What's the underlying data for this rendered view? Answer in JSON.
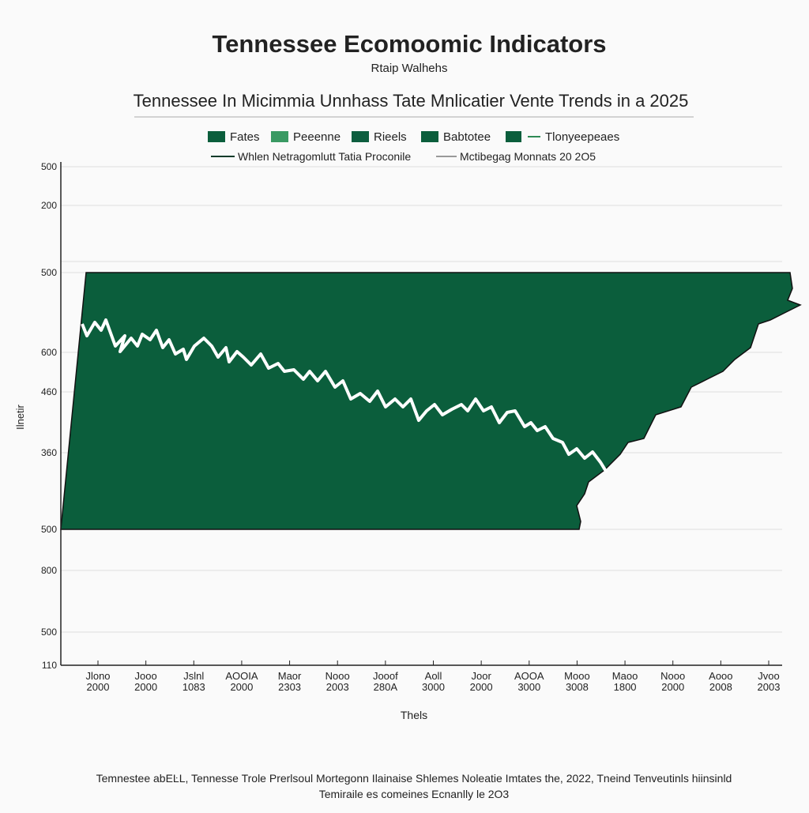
{
  "header": {
    "title": "Tennessee Ecomoomic Indicators",
    "subtitle": "Rtaip Walhehs",
    "heading": "Tennessee In Micimmia Unnhass Tate  Mnlicatier Vente Trends in a 2025"
  },
  "legend": {
    "row1": [
      "Fates",
      "Peeenne",
      "Rieels",
      "Babtotee",
      "Tlonyeepeaes"
    ],
    "row2": [
      "Whlen Netragomlutt Tatia Proconile",
      "Mctibegag Monnats 20 2O5"
    ]
  },
  "axes": {
    "y_title": "Ilnetir",
    "x_title": "Thels",
    "y_labels": [
      "500",
      "200",
      "500",
      "600",
      "460",
      "360",
      "500",
      "800",
      "500",
      "110"
    ],
    "x_labels": [
      [
        "Jlono",
        "2000"
      ],
      [
        "Jooo",
        "2000"
      ],
      [
        "Jslnl",
        "1083"
      ],
      [
        "AOOIA",
        "2000"
      ],
      [
        "Maor",
        "2303"
      ],
      [
        "Nooo",
        "2003"
      ],
      [
        "Jooof",
        "280A"
      ],
      [
        "Aoll",
        "3000"
      ],
      [
        "Joor",
        "2000"
      ],
      [
        "AOOA",
        "3000"
      ],
      [
        "Mooo",
        "3008"
      ],
      [
        "Maoo",
        "1800"
      ],
      [
        "Nooo",
        "2000"
      ],
      [
        "Aooo",
        "2008"
      ],
      [
        "Jvoo",
        "2003"
      ]
    ]
  },
  "footer": [
    "Temnestee abEĿL, Tennesse Trole Prerlsoul Mortegonn Ilainaise Shlemes Noleatie Imtates the, 2022, Tneind Tenveutinls hiinsinld",
    "Temiraile es comeines Ecnanlly le 2O3"
  ]
}
